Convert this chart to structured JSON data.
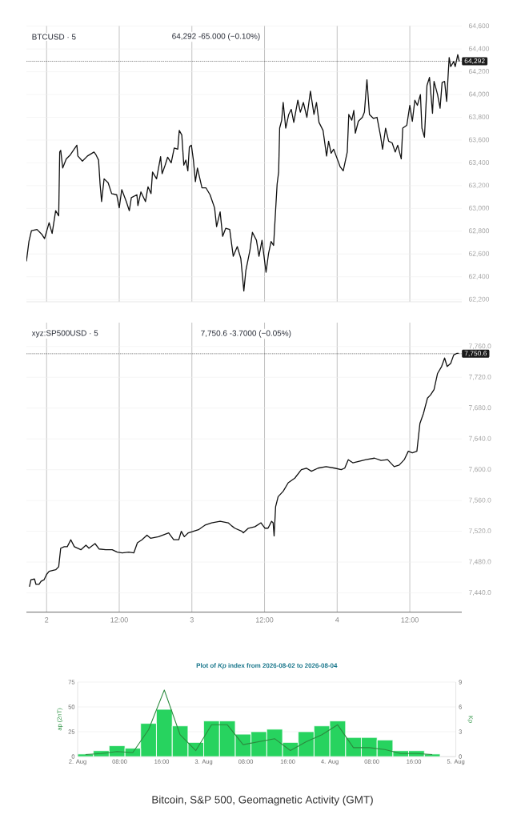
{
  "chart_data": [
    {
      "type": "line",
      "title": "BTCUSD · 5",
      "subtitle": "64,292 -65.000 (−0.10%)",
      "color": "#111111",
      "x": [
        "2026-08-01T20:40",
        "2026-08-01T21:05",
        "2026-08-01T21:30",
        "2026-08-01T22:25",
        "2026-08-01T23:15",
        "2026-08-01T23:40",
        "2026-08-02T00:25",
        "2026-08-02T00:55",
        "2026-08-02T01:30",
        "2026-08-02T02:00",
        "2026-08-02T02:10",
        "2026-08-02T02:20",
        "2026-08-02T02:40",
        "2026-08-02T03:15",
        "2026-08-02T03:55",
        "2026-08-02T05:00",
        "2026-08-02T05:10",
        "2026-08-02T05:55",
        "2026-08-02T06:45",
        "2026-08-02T07:50",
        "2026-08-02T08:10",
        "2026-08-02T08:35",
        "2026-08-02T08:50",
        "2026-08-02T09:05",
        "2026-08-02T09:30",
        "2026-08-02T10:10",
        "2026-08-02T10:45",
        "2026-08-02T11:35",
        "2026-08-02T12:00",
        "2026-08-02T12:25",
        "2026-08-02T13:10",
        "2026-08-02T13:40",
        "2026-08-02T14:00",
        "2026-08-02T14:55",
        "2026-08-02T15:05",
        "2026-08-02T15:35",
        "2026-08-02T16:20",
        "2026-08-02T16:45",
        "2026-08-02T17:15",
        "2026-08-02T17:30",
        "2026-08-02T18:10",
        "2026-08-02T18:50",
        "2026-08-02T19:05",
        "2026-08-02T19:35",
        "2026-08-02T20:00",
        "2026-08-02T20:35",
        "2026-08-02T21:05",
        "2026-08-02T21:40",
        "2026-08-02T21:55",
        "2026-08-02T22:20",
        "2026-08-02T22:40",
        "2026-08-02T23:00",
        "2026-08-02T23:20",
        "2026-08-02T23:35",
        "2026-08-02T23:55",
        "2026-08-03T00:15",
        "2026-08-03T00:35",
        "2026-08-03T00:55",
        "2026-08-03T01:40",
        "2026-08-03T02:20",
        "2026-08-03T03:00",
        "2026-08-03T03:45",
        "2026-08-03T04:05",
        "2026-08-03T04:40",
        "2026-08-03T05:05",
        "2026-08-03T05:35",
        "2026-08-03T06:15",
        "2026-08-03T06:50",
        "2026-08-03T07:30",
        "2026-08-03T08:05",
        "2026-08-03T08:20",
        "2026-08-03T08:35",
        "2026-08-03T08:55",
        "2026-08-03T09:35",
        "2026-08-03T10:00",
        "2026-08-03T10:40",
        "2026-08-03T11:05",
        "2026-08-03T11:35",
        "2026-08-03T12:15",
        "2026-08-03T12:40",
        "2026-08-03T13:05",
        "2026-08-03T13:30",
        "2026-08-03T13:45",
        "2026-08-03T14:05",
        "2026-08-03T14:20",
        "2026-08-03T14:30",
        "2026-08-03T14:50",
        "2026-08-03T15:05",
        "2026-08-03T15:30",
        "2026-08-03T16:00",
        "2026-08-03T16:25",
        "2026-08-03T16:50",
        "2026-08-03T17:30",
        "2026-08-03T17:55",
        "2026-08-03T18:25",
        "2026-08-03T19:00",
        "2026-08-03T19:35",
        "2026-08-03T20:10",
        "2026-08-03T20:35",
        "2026-08-03T21:00",
        "2026-08-03T21:40",
        "2026-08-03T22:15",
        "2026-08-03T22:35",
        "2026-08-03T23:00",
        "2026-08-03T23:25",
        "2026-08-04T00:05",
        "2026-08-04T00:30",
        "2026-08-04T01:00",
        "2026-08-04T01:40",
        "2026-08-04T01:55",
        "2026-08-04T02:25",
        "2026-08-04T02:45",
        "2026-08-04T03:00",
        "2026-08-04T03:30",
        "2026-08-04T04:10",
        "2026-08-04T04:30",
        "2026-08-04T04:55",
        "2026-08-04T05:20",
        "2026-08-04T06:00",
        "2026-08-04T06:35",
        "2026-08-04T07:10",
        "2026-08-04T07:30",
        "2026-08-04T08:00",
        "2026-08-04T08:30",
        "2026-08-04T09:05",
        "2026-08-04T09:35",
        "2026-08-04T10:00",
        "2026-08-04T10:35",
        "2026-08-04T10:50",
        "2026-08-04T11:30",
        "2026-08-04T12:00",
        "2026-08-04T12:25",
        "2026-08-04T12:50",
        "2026-08-04T13:15",
        "2026-08-04T13:45",
        "2026-08-04T14:00",
        "2026-08-04T14:25",
        "2026-08-04T14:50",
        "2026-08-04T15:15",
        "2026-08-04T15:45",
        "2026-08-04T16:00",
        "2026-08-04T16:35",
        "2026-08-04T17:00",
        "2026-08-04T17:20",
        "2026-08-04T17:45",
        "2026-08-04T18:05",
        "2026-08-04T18:30",
        "2026-08-04T18:45",
        "2026-08-04T19:15",
        "2026-08-04T19:30",
        "2026-08-04T19:55",
        "2026-08-04T20:10"
      ],
      "values": [
        62535,
        62710,
        62805,
        62815,
        62770,
        62735,
        62875,
        62780,
        62980,
        62935,
        63495,
        63510,
        63355,
        63435,
        63470,
        63555,
        63460,
        63415,
        63460,
        63495,
        63470,
        63425,
        63215,
        63060,
        63260,
        63225,
        63130,
        63120,
        63005,
        63165,
        63060,
        62980,
        63095,
        63120,
        63025,
        63145,
        63060,
        63190,
        63130,
        63320,
        63260,
        63455,
        63305,
        63380,
        63450,
        63400,
        63530,
        63520,
        63685,
        63645,
        63380,
        63425,
        63330,
        63540,
        63555,
        63425,
        63235,
        63355,
        63180,
        63180,
        63120,
        63005,
        62840,
        62970,
        62755,
        62825,
        62815,
        62580,
        62665,
        62560,
        62420,
        62275,
        62455,
        62630,
        62790,
        62720,
        62580,
        62720,
        62440,
        62605,
        62710,
        62675,
        62910,
        63215,
        63320,
        63705,
        63775,
        63930,
        63705,
        63825,
        63870,
        63755,
        63950,
        63845,
        63930,
        63800,
        64030,
        63825,
        63930,
        63755,
        63685,
        63460,
        63590,
        63485,
        63520,
        63425,
        63365,
        63330,
        63495,
        63825,
        63775,
        63860,
        63660,
        63765,
        63800,
        63845,
        64130,
        63825,
        63790,
        63800,
        63635,
        63520,
        63705,
        63590,
        63575,
        63495,
        63555,
        63435,
        63705,
        63730,
        63905,
        63765,
        63950,
        63905,
        64000,
        63705,
        63625,
        64080,
        64150,
        63835,
        64115,
        64000,
        63880,
        64105,
        64115,
        63940,
        64325,
        64245,
        64290,
        64245,
        64350,
        64292
      ],
      "xlim": [
        "2026-08-01T20:40",
        "2026-08-04T20:35"
      ],
      "xticks": [
        {
          "value": "2026-08-02T00:00",
          "label": null
        },
        {
          "value": "2026-08-02T12:00",
          "label": null
        },
        {
          "value": "2026-08-03T00:00",
          "label": null
        },
        {
          "value": "2026-08-03T12:00",
          "label": null
        },
        {
          "value": "2026-08-04T00:00",
          "label": null
        },
        {
          "value": "2026-08-04T12:00",
          "label": null
        }
      ],
      "ylim": [
        62180,
        64605
      ],
      "yticks": [
        {
          "value": 62200,
          "label": "62,200"
        },
        {
          "value": 62400,
          "label": "62,400"
        },
        {
          "value": 62600,
          "label": "62,600"
        },
        {
          "value": 62800,
          "label": "62,800"
        },
        {
          "value": 63000,
          "label": "63,000"
        },
        {
          "value": 63200,
          "label": "63,200"
        },
        {
          "value": 63400,
          "label": "63,400"
        },
        {
          "value": 63600,
          "label": "63,600"
        },
        {
          "value": 63800,
          "label": "63,800"
        },
        {
          "value": 64000,
          "label": "64,000"
        },
        {
          "value": 64200,
          "label": "64,200"
        },
        {
          "value": 64400,
          "label": "64,400"
        },
        {
          "value": 64600,
          "label": "64,600"
        }
      ],
      "ref_lines": [
        {
          "axis": "y",
          "value": 64292,
          "label": "64,292",
          "line_style": "dotted",
          "color": "#1a1a1a"
        }
      ],
      "grid": true,
      "tick_labels": "y"
    },
    {
      "type": "line",
      "title": "xyz:SP500USD · 5",
      "subtitle": "7,750.6 -3.7000 (−0.05%)",
      "color": "#111111",
      "x": [
        "2026-08-01T21:10",
        "2026-08-01T21:25",
        "2026-08-01T22:00",
        "2026-08-01T22:15",
        "2026-08-01T22:45",
        "2026-08-01T23:05",
        "2026-08-01T23:35",
        "2026-08-02T00:00",
        "2026-08-02T00:25",
        "2026-08-02T01:30",
        "2026-08-02T02:00",
        "2026-08-02T02:20",
        "2026-08-02T02:55",
        "2026-08-02T03:25",
        "2026-08-02T04:00",
        "2026-08-02T04:35",
        "2026-08-02T05:40",
        "2026-08-02T06:30",
        "2026-08-02T07:00",
        "2026-08-02T08:00",
        "2026-08-02T08:40",
        "2026-08-02T09:45",
        "2026-08-02T10:50",
        "2026-08-02T11:40",
        "2026-08-02T12:30",
        "2026-08-02T13:35",
        "2026-08-02T14:25",
        "2026-08-02T15:00",
        "2026-08-02T15:45",
        "2026-08-02T16:35",
        "2026-08-02T17:10",
        "2026-08-02T18:30",
        "2026-08-02T20:10",
        "2026-08-02T21:00",
        "2026-08-02T21:50",
        "2026-08-02T22:15",
        "2026-08-02T22:45",
        "2026-08-02T23:25",
        "2026-08-03T00:15",
        "2026-08-03T01:05",
        "2026-08-03T02:10",
        "2026-08-03T03:15",
        "2026-08-03T04:40",
        "2026-08-03T06:00",
        "2026-08-03T06:35",
        "2026-08-03T07:05",
        "2026-08-03T08:15",
        "2026-08-03T08:30",
        "2026-08-03T09:20",
        "2026-08-03T10:25",
        "2026-08-03T11:25",
        "2026-08-03T12:05",
        "2026-08-03T12:35",
        "2026-08-03T13:10",
        "2026-08-03T13:25",
        "2026-08-03T13:35",
        "2026-08-03T13:50",
        "2026-08-03T14:15",
        "2026-08-03T15:05",
        "2026-08-03T15:55",
        "2026-08-03T17:00",
        "2026-08-03T18:05",
        "2026-08-03T18:55",
        "2026-08-03T19:45",
        "2026-08-03T20:50",
        "2026-08-03T22:10",
        "2026-08-03T23:35",
        "2026-08-04T00:40",
        "2026-08-04T01:15",
        "2026-08-04T01:50",
        "2026-08-04T02:35",
        "2026-08-04T03:40",
        "2026-08-04T04:45",
        "2026-08-04T06:10",
        "2026-08-04T07:15",
        "2026-08-04T08:20",
        "2026-08-04T09:25",
        "2026-08-04T10:15",
        "2026-08-04T11:05",
        "2026-08-04T11:45",
        "2026-08-04T12:25",
        "2026-08-04T13:10",
        "2026-08-04T13:40",
        "2026-08-04T14:15",
        "2026-08-04T14:55",
        "2026-08-04T15:25",
        "2026-08-04T16:00",
        "2026-08-04T16:35",
        "2026-08-04T17:15",
        "2026-08-04T17:45",
        "2026-08-04T18:10",
        "2026-08-04T18:45",
        "2026-08-04T19:15",
        "2026-08-04T19:45",
        "2026-08-04T20:05"
      ],
      "values": [
        7448,
        7457,
        7458,
        7451,
        7451,
        7455,
        7457,
        7464,
        7468,
        7470,
        7474,
        7498,
        7500,
        7500,
        7509,
        7500,
        7496,
        7502,
        7498,
        7504,
        7497,
        7496,
        7496,
        7493,
        7492,
        7493,
        7492,
        7505,
        7509,
        7515,
        7511,
        7513,
        7518,
        7509,
        7509,
        7520,
        7513,
        7518,
        7520,
        7522,
        7528,
        7531,
        7533,
        7531,
        7527,
        7524,
        7520,
        7518,
        7524,
        7526,
        7531,
        7524,
        7524,
        7533,
        7531,
        7514,
        7552,
        7565,
        7572,
        7583,
        7589,
        7600,
        7602,
        7598,
        7602,
        7604,
        7602,
        7600,
        7602,
        7613,
        7609,
        7611,
        7613,
        7615,
        7612,
        7613,
        7604,
        7606,
        7613,
        7624,
        7622,
        7624,
        7660,
        7673,
        7693,
        7697,
        7704,
        7725,
        7734,
        7745,
        7734,
        7738,
        7749,
        7751,
        7751
      ],
      "xlim": [
        "2026-08-01T20:40",
        "2026-08-04T20:35"
      ],
      "xticks": [
        {
          "value": "2026-08-02T00:00",
          "label": "2"
        },
        {
          "value": "2026-08-02T12:00",
          "label": "12:00"
        },
        {
          "value": "2026-08-03T00:00",
          "label": "3"
        },
        {
          "value": "2026-08-03T12:00",
          "label": "12:00"
        },
        {
          "value": "2026-08-04T00:00",
          "label": "4"
        },
        {
          "value": "2026-08-04T12:00",
          "label": "12:00"
        }
      ],
      "ylim": [
        7415,
        7791
      ],
      "yticks": [
        {
          "value": 7440,
          "label": "7,440.0"
        },
        {
          "value": 7480,
          "label": "7,480.0"
        },
        {
          "value": 7520,
          "label": "7,520.0"
        },
        {
          "value": 7560,
          "label": "7,560.0"
        },
        {
          "value": 7600,
          "label": "7,600.0"
        },
        {
          "value": 7640,
          "label": "7,640.0"
        },
        {
          "value": 7680,
          "label": "7,680.0"
        },
        {
          "value": 7720,
          "label": "7,720.0"
        },
        {
          "value": 7760,
          "label": "7,760.0"
        }
      ],
      "ref_lines": [
        {
          "axis": "y",
          "value": 7750.6,
          "label": "7,750.6",
          "line_style": "dotted",
          "color": "#1a1a1a"
        }
      ],
      "grid": true
    },
    {
      "type": "bar",
      "title": "Plot of *Kp* index from 2026-08-02 to 2026-08-04",
      "ylabel": "ap (2nT)",
      "y2label": "Kp",
      "x": [
        "2026-08-02T01:30",
        "2026-08-02T04:30",
        "2026-08-02T07:30",
        "2026-08-02T10:30",
        "2026-08-02T13:30",
        "2026-08-02T16:30",
        "2026-08-02T19:30",
        "2026-08-02T22:30",
        "2026-08-03T01:30",
        "2026-08-03T04:30",
        "2026-08-03T07:30",
        "2026-08-03T10:30",
        "2026-08-03T13:30",
        "2026-08-03T16:30",
        "2026-08-03T19:30",
        "2026-08-03T22:30",
        "2026-08-04T01:30",
        "2026-08-04T04:30",
        "2026-08-04T07:30",
        "2026-08-04T10:30",
        "2026-08-04T13:30",
        "2026-08-04T16:30",
        "2026-08-04T19:30"
      ],
      "series": [
        {
          "axis": "y2",
          "color": "#27d35f",
          "values": [
            0.3,
            0.7,
            1.3,
            1,
            4,
            5.7,
            3.7,
            1.7,
            4.3,
            4.3,
            2.7,
            3,
            3.3,
            1.7,
            3,
            3.7,
            4.3,
            2.3,
            2.3,
            2,
            0.7,
            0.7,
            0.3
          ]
        },
        {
          "type": "line",
          "color": "#2b8a3e",
          "values": [
            2,
            3,
            5,
            4,
            27,
            67,
            22,
            6,
            32,
            32,
            12,
            15,
            18,
            6,
            15,
            22,
            32,
            9,
            9,
            7,
            3,
            3,
            2
          ]
        }
      ],
      "xlim": [
        "2026-08-02T00:00",
        "2026-08-05T00:00"
      ],
      "xticks": [
        {
          "value": "2026-08-02T00:00",
          "label": "2. Aug"
        },
        {
          "value": "2026-08-02T08:00",
          "label": "08:00"
        },
        {
          "value": "2026-08-02T16:00",
          "label": "16:00"
        },
        {
          "value": "2026-08-03T00:00",
          "label": "3. Aug"
        },
        {
          "value": "2026-08-03T08:00",
          "label": "08:00"
        },
        {
          "value": "2026-08-03T16:00",
          "label": "16:00"
        },
        {
          "value": "2026-08-04T00:00",
          "label": "4. Aug"
        },
        {
          "value": "2026-08-04T08:00",
          "label": "08:00"
        },
        {
          "value": "2026-08-04T16:00",
          "label": "16:00"
        },
        {
          "value": "2026-08-05T00:00",
          "label": "5. Aug"
        }
      ],
      "ylim": [
        0,
        75
      ],
      "yticks": [
        0,
        25,
        50,
        75
      ],
      "y2lim": [
        0,
        9
      ],
      "y2ticks": [
        0,
        3,
        6,
        9
      ],
      "grid": "y",
      "annotations": [
        "Bitcoin, S&P 500, Geomagnetic Activity (GMT)"
      ]
    }
  ]
}
